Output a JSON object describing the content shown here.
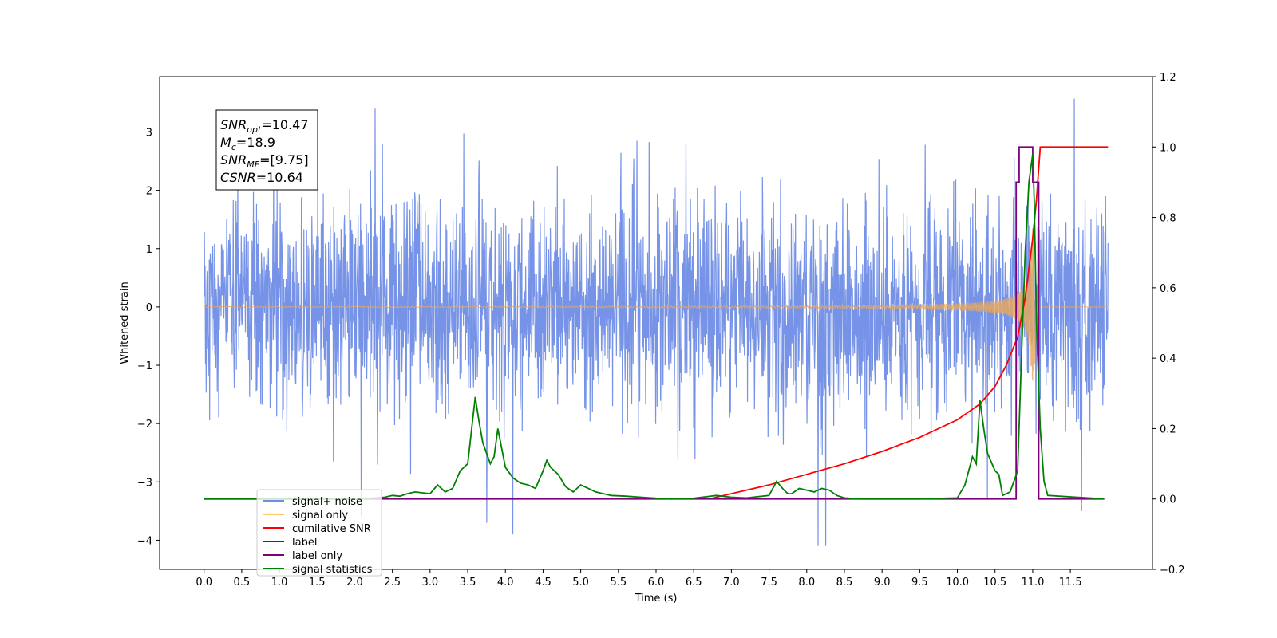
{
  "chart_data": {
    "type": "line",
    "xlabel": "Time (s)",
    "ylabel_left": "Whitened strain",
    "ylabel_right": "",
    "x_range": [
      0,
      12
    ],
    "xlim": [
      -0.59,
      12.59
    ],
    "ylim_left": [
      -4.5,
      3.95
    ],
    "ylim_right": [
      -0.2,
      1.2
    ],
    "x_ticks": [
      "0.0",
      "0.5",
      "1.0",
      "1.5",
      "2.0",
      "2.5",
      "3.0",
      "3.5",
      "4.0",
      "4.5",
      "5.0",
      "5.5",
      "6.0",
      "6.5",
      "7.0",
      "7.5",
      "8.0",
      "8.5",
      "9.0",
      "9.5",
      "10.0",
      "10.5",
      "11.0",
      "11.5"
    ],
    "y_ticks_left": [
      "3",
      "2",
      "1",
      "0",
      "−1",
      "−2",
      "−3",
      "−4"
    ],
    "y_ticks_right": [
      "1.2",
      "1.0",
      "0.8",
      "0.6",
      "0.4",
      "0.2",
      "0.0",
      "−0.2"
    ],
    "annotation": [
      {
        "main": "SNR",
        "sub": "opt",
        "value": "=10.47"
      },
      {
        "main": "M",
        "sub": "c",
        "value": "=18.9"
      },
      {
        "main": "SNR",
        "sub": "MF",
        "value": "=[9.75]"
      },
      {
        "main": "CSNR",
        "sub": "",
        "value": "=10.64"
      }
    ],
    "legend": {
      "placement": "lower-left",
      "entries": [
        {
          "label": "signal+ noise",
          "color": "#6f8de6"
        },
        {
          "label": "signal only",
          "color": "#ffc866"
        },
        {
          "label": "cumilative SNR",
          "color": "#ff0000"
        },
        {
          "label": "label",
          "color": "#800080"
        },
        {
          "label": "label only",
          "color": "#800080"
        },
        {
          "label": "signal statistics",
          "color": "#008000"
        }
      ]
    },
    "series": [
      {
        "name": "signal+ noise",
        "axis": "left",
        "kind": "noise",
        "color": "#6f8de6",
        "sigma": 0.9,
        "x_start": 0.0,
        "x_end": 12.0,
        "peaks": [
          [
            2.27,
            3.4
          ],
          [
            11.55,
            3.57
          ],
          [
            8.15,
            -4.1
          ],
          [
            8.25,
            -4.1
          ],
          [
            4.1,
            -3.9
          ],
          [
            3.75,
            -3.7
          ],
          [
            11.65,
            -3.5
          ],
          [
            10.4,
            -3.3
          ]
        ]
      },
      {
        "name": "signal only",
        "axis": "left",
        "kind": "chirp",
        "color": "#e8a860",
        "x_start": 0.0,
        "x_end": 12.0,
        "merger_time": 11.02,
        "max_amplitude": 1.35
      },
      {
        "name": "cumilative SNR",
        "axis": "right",
        "color": "#ff0000",
        "x": [
          6.7,
          7.5,
          8.0,
          8.5,
          9.0,
          9.5,
          10.0,
          10.3,
          10.5,
          10.65,
          10.8,
          10.9,
          11.0,
          11.05,
          11.1,
          12.0
        ],
        "y": [
          0.0,
          0.04,
          0.07,
          0.1,
          0.135,
          0.175,
          0.225,
          0.27,
          0.32,
          0.38,
          0.46,
          0.57,
          0.74,
          0.85,
          1.0,
          1.0
        ]
      },
      {
        "name": "label",
        "axis": "right",
        "color": "#800080",
        "x": [
          0.0,
          10.78,
          10.78,
          10.82,
          10.82,
          11.0,
          11.0,
          11.08,
          11.08,
          11.95
        ],
        "y": [
          0.0,
          0.0,
          0.9,
          0.9,
          1.0,
          1.0,
          0.9,
          0.9,
          0.0,
          0.0
        ]
      },
      {
        "name": "signal statistics",
        "axis": "right",
        "color": "#008000",
        "x": [
          0.0,
          2.1,
          2.4,
          2.5,
          2.6,
          2.7,
          2.8,
          3.0,
          3.1,
          3.15,
          3.2,
          3.3,
          3.4,
          3.5,
          3.6,
          3.65,
          3.7,
          3.8,
          3.85,
          3.9,
          4.0,
          4.1,
          4.2,
          4.3,
          4.4,
          4.5,
          4.55,
          4.6,
          4.7,
          4.8,
          4.9,
          5.0,
          5.1,
          5.2,
          5.4,
          5.6,
          5.8,
          6.0,
          6.2,
          6.5,
          6.8,
          7.0,
          7.2,
          7.5,
          7.6,
          7.7,
          7.75,
          7.8,
          7.9,
          8.0,
          8.1,
          8.2,
          8.3,
          8.4,
          8.5,
          8.7,
          9.0,
          9.5,
          10.0,
          10.1,
          10.2,
          10.25,
          10.3,
          10.35,
          10.4,
          10.5,
          10.55,
          10.6,
          10.7,
          10.8,
          10.85,
          10.9,
          10.95,
          11.0,
          11.02,
          11.05,
          11.1,
          11.15,
          11.2,
          11.95
        ],
        "y": [
          0.0,
          0.0,
          0.005,
          0.01,
          0.008,
          0.015,
          0.02,
          0.015,
          0.04,
          0.03,
          0.02,
          0.03,
          0.08,
          0.1,
          0.29,
          0.22,
          0.16,
          0.1,
          0.12,
          0.2,
          0.09,
          0.06,
          0.045,
          0.04,
          0.03,
          0.08,
          0.11,
          0.09,
          0.07,
          0.035,
          0.02,
          0.04,
          0.03,
          0.02,
          0.01,
          0.008,
          0.005,
          0.002,
          0.0,
          0.002,
          0.01,
          0.005,
          0.003,
          0.01,
          0.05,
          0.025,
          0.015,
          0.015,
          0.03,
          0.025,
          0.02,
          0.03,
          0.025,
          0.01,
          0.003,
          0.0,
          0.0,
          0.0,
          0.003,
          0.04,
          0.12,
          0.1,
          0.28,
          0.2,
          0.13,
          0.08,
          0.07,
          0.01,
          0.02,
          0.08,
          0.4,
          0.7,
          0.9,
          0.98,
          0.85,
          0.5,
          0.2,
          0.05,
          0.01,
          0.0
        ]
      }
    ]
  }
}
